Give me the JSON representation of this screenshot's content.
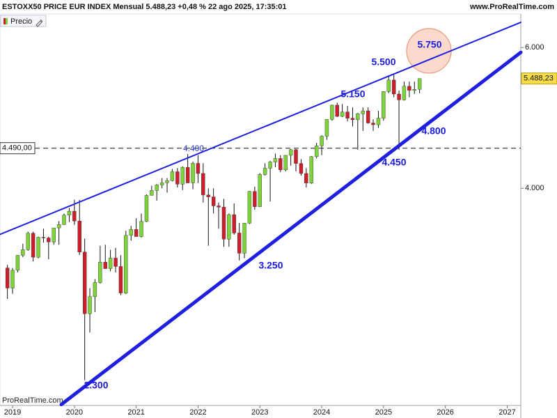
{
  "chart_data": {
    "type": "candlestick",
    "title": "ESTOXX50 PRICE EUR INDEX Mensual 5.488,23 +0,48 % 22 ago 2025, 17:35:01",
    "site": "www.ProRealTime.com",
    "watermark": "ProRealTime.com",
    "legend": "Precio",
    "log_scale": true,
    "up_color": "#7ed33a",
    "down_color": "#cc1f2a",
    "x": [
      2018.917,
      2019.0,
      2019.083,
      2019.167,
      2019.25,
      2019.333,
      2019.417,
      2019.5,
      2019.583,
      2019.667,
      2019.75,
      2019.833,
      2019.917,
      2020.0,
      2020.083,
      2020.167,
      2020.25,
      2020.333,
      2020.417,
      2020.5,
      2020.583,
      2020.667,
      2020.75,
      2020.833,
      2020.917,
      2021.0,
      2021.083,
      2021.167,
      2021.25,
      2021.333,
      2021.417,
      2021.5,
      2021.583,
      2021.667,
      2021.75,
      2021.833,
      2021.917,
      2022.0,
      2022.083,
      2022.167,
      2022.25,
      2022.333,
      2022.417,
      2022.5,
      2022.583,
      2022.667,
      2022.75,
      2022.833,
      2022.917,
      2023.0,
      2023.083,
      2023.167,
      2023.25,
      2023.333,
      2023.417,
      2023.5,
      2023.583,
      2023.667,
      2023.75,
      2023.833,
      2023.917,
      2024.0,
      2024.083,
      2024.167,
      2024.25,
      2024.333,
      2024.417,
      2024.5,
      2024.583,
      2024.667,
      2024.75,
      2024.833,
      2024.917,
      2025.0,
      2025.083,
      2025.167,
      2025.25,
      2025.333,
      2025.417,
      2025.5,
      2025.583
    ],
    "open": [
      3180,
      3001,
      3159,
      3298,
      3352,
      3515,
      3280,
      3474,
      3467,
      3427,
      3569,
      3604,
      3703,
      3745,
      3640,
      3329,
      2787,
      2928,
      3050,
      3234,
      3174,
      3272,
      3194,
      2958,
      3493,
      3553,
      3481,
      3636,
      3919,
      3975,
      4039,
      4064,
      4089,
      4196,
      4048,
      4250,
      4063,
      4298,
      4175,
      3924,
      3903,
      3803,
      3789,
      3455,
      3708,
      3517,
      3318,
      3618,
      3965,
      3794,
      4163,
      4238,
      4315,
      4359,
      4218,
      4399,
      4471,
      4297,
      4175,
      4061,
      4382,
      4521,
      4648,
      4878,
      5083,
      4921,
      4984,
      4894,
      4873,
      4958,
      5000,
      4828,
      4804,
      4896,
      5286,
      5464,
      5248,
      5161,
      5367,
      5303,
      5320
    ],
    "high": [
      3210,
      3180,
      3300,
      3410,
      3530,
      3530,
      3480,
      3560,
      3480,
      3570,
      3640,
      3720,
      3780,
      3870,
      3870,
      3460,
      3000,
      3080,
      3390,
      3400,
      3350,
      3370,
      3300,
      3540,
      3590,
      3670,
      3720,
      3930,
      4030,
      4050,
      4120,
      4120,
      4230,
      4240,
      4260,
      4415,
      4320,
      4400,
      4300,
      4000,
      4000,
      3840,
      3880,
      3720,
      3830,
      3620,
      3620,
      3970,
      4020,
      4180,
      4300,
      4330,
      4420,
      4400,
      4400,
      4480,
      4480,
      4350,
      4240,
      4390,
      4560,
      4660,
      4880,
      5090,
      5120,
      5100,
      5070,
      5050,
      4970,
      5050,
      5050,
      4880,
      5000,
      5290,
      5540,
      5568,
      5300,
      5440,
      5440,
      5440,
      5490
    ],
    "low": [
      2909,
      2952,
      3140,
      3280,
      3340,
      3240,
      3270,
      3420,
      3260,
      3400,
      3400,
      3600,
      3630,
      3600,
      3300,
      2302,
      2640,
      2800,
      3040,
      3170,
      3150,
      3140,
      2940,
      2950,
      3440,
      3480,
      3470,
      3630,
      3920,
      3860,
      4000,
      3950,
      4080,
      4010,
      3980,
      4060,
      3990,
      4060,
      3840,
      3390,
      3720,
      3560,
      3380,
      3380,
      3500,
      3250,
      3270,
      3610,
      3760,
      3790,
      4150,
      3850,
      4250,
      4190,
      4200,
      4270,
      4200,
      4150,
      4010,
      4050,
      4360,
      4400,
      4600,
      4860,
      4910,
      4910,
      4850,
      4780,
      4470,
      4720,
      4820,
      4720,
      4760,
      4860,
      5260,
      5200,
      4470,
      5150,
      5200,
      5250,
      5260
    ],
    "close": [
      3001,
      3159,
      3298,
      3352,
      3515,
      3280,
      3474,
      3467,
      3427,
      3569,
      3604,
      3703,
      3745,
      3640,
      3329,
      2787,
      2928,
      3050,
      3234,
      3174,
      3272,
      3194,
      2958,
      3493,
      3553,
      3481,
      3636,
      3919,
      3975,
      4039,
      4064,
      4089,
      4196,
      4048,
      4250,
      4063,
      4298,
      4175,
      3924,
      3903,
      3803,
      3789,
      3455,
      3708,
      3517,
      3318,
      3618,
      3965,
      3794,
      4163,
      4238,
      4315,
      4359,
      4218,
      4399,
      4471,
      4297,
      4175,
      4061,
      4382,
      4521,
      4648,
      4878,
      5083,
      4921,
      4984,
      4894,
      4873,
      4958,
      5000,
      4828,
      4804,
      4896,
      5286,
      5464,
      5248,
      5161,
      5367,
      5303,
      5320,
      5488.23
    ],
    "xlim": [
      2018.797,
      2027.22
    ],
    "xticks": [
      2019,
      2020,
      2021,
      2022,
      2023,
      2024,
      2025,
      2026,
      2027
    ],
    "ylim": [
      2140,
      6610
    ],
    "yticks": [
      {
        "value": 4000,
        "label": "4.000"
      },
      {
        "value": 6000,
        "label": "6.000"
      }
    ],
    "last_price": {
      "value": 5488.23,
      "label": "5.488,23"
    },
    "horizontal_line": {
      "value": 4490,
      "label": "4.490,00"
    },
    "trendlines": [
      {
        "x": [
          2018.797,
          2027.22
        ],
        "y": [
          3503,
          6452
        ],
        "color": "#1f1fe0"
      },
      {
        "x": [
          2019.788,
          2027.22
        ],
        "y": [
          2146,
          5917
        ],
        "color": "#1f1fe0"
      }
    ],
    "annotations": [
      "5.750",
      "5.500",
      "5.150",
      "4.800",
      "4.450",
      "4.400",
      "3.250",
      "2.300"
    ]
  }
}
